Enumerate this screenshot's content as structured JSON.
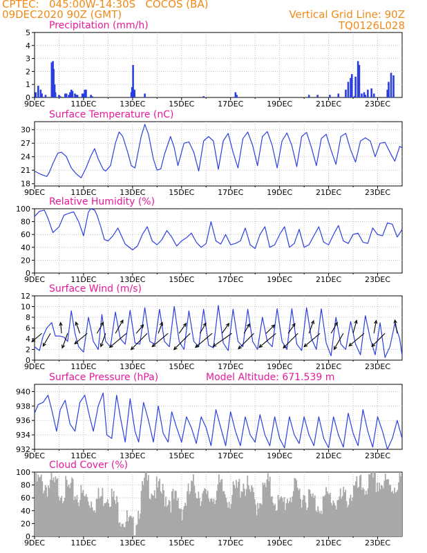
{
  "header": {
    "left_line1": "CPTEC:   045:00W-14:30S   COCOS (BA)",
    "left_line2": "09DEC2020 90Z (GMT)",
    "right_line1": "Vertical Grid Line: 90Z",
    "right_line2": "TQ0126L028"
  },
  "colors": {
    "header": "#ee8a1a",
    "title": "#e8199a",
    "series": "#2b3fe0",
    "cloud": "#a8a8a8",
    "axis": "#000000",
    "grid": "#b0b0b0"
  },
  "x_axis": {
    "labels": [
      "9DEC",
      "11DEC",
      "13DEC",
      "15DEC",
      "17DEC",
      "19DEC",
      "21DEC",
      "23DEC"
    ],
    "label_days": [
      0,
      2,
      4,
      6,
      8,
      10,
      12,
      14
    ],
    "span_days": 15
  },
  "chart_data": [
    {
      "type": "bar",
      "title": "Precipitation (mm/h)",
      "ylim": [
        0,
        5
      ],
      "yticks": [
        "0",
        "1",
        "2",
        "3",
        "4",
        "5"
      ],
      "x": [
        0.05,
        0.15,
        0.25,
        0.3,
        0.45,
        0.7,
        0.75,
        0.78,
        0.82,
        0.85,
        1.0,
        1.05,
        1.25,
        1.3,
        1.4,
        1.45,
        1.5,
        1.55,
        1.65,
        1.7,
        1.75,
        1.95,
        2.0,
        2.05,
        2.1,
        2.3,
        2.35,
        3.95,
        3.98,
        4.02,
        4.08,
        4.5,
        6.9,
        8.2,
        8.25,
        11.2,
        11.55,
        12.05,
        12.4,
        12.7,
        12.8,
        12.9,
        12.95,
        13.05,
        13.1,
        13.2,
        13.25,
        13.35,
        13.45,
        13.5,
        13.6,
        13.75,
        13.85,
        14.4,
        14.45,
        14.55,
        14.65
      ],
      "values": [
        0.4,
        0.9,
        0.6,
        0.3,
        0.2,
        2.7,
        2.8,
        2.2,
        1.0,
        0.4,
        0.2,
        0.1,
        0.3,
        0.3,
        0.2,
        0.4,
        0.6,
        0.5,
        0.3,
        0.2,
        0.2,
        0.3,
        0.3,
        0.6,
        0.6,
        0.2,
        0.1,
        0.4,
        0.8,
        2.5,
        0.6,
        0.3,
        0.1,
        0.4,
        0.2,
        0.2,
        0.2,
        0.2,
        0.3,
        0.6,
        1.2,
        1.5,
        1.8,
        0.1,
        1.6,
        2.8,
        2.5,
        0.3,
        0.4,
        0.2,
        0.6,
        0.7,
        0.3,
        0.6,
        1.2,
        1.9,
        1.7
      ]
    },
    {
      "type": "line",
      "title": "Surface Temperature (nC)",
      "ylim": [
        17.5,
        31.8
      ],
      "yticks": [
        "18",
        "21",
        "24",
        "27",
        "30"
      ],
      "x": [
        0,
        0.25,
        0.5,
        0.6,
        0.75,
        0.95,
        1.1,
        1.3,
        1.5,
        1.7,
        1.9,
        2.1,
        2.3,
        2.45,
        2.6,
        2.8,
        2.9,
        3.1,
        3.3,
        3.45,
        3.6,
        3.8,
        3.95,
        4.1,
        4.35,
        4.5,
        4.65,
        4.85,
        5.0,
        5.15,
        5.3,
        5.55,
        5.7,
        5.85,
        6.1,
        6.3,
        6.5,
        6.7,
        6.9,
        7.1,
        7.3,
        7.5,
        7.7,
        7.9,
        8.1,
        8.3,
        8.5,
        8.7,
        8.9,
        9.1,
        9.3,
        9.5,
        9.7,
        9.9,
        10.1,
        10.3,
        10.5,
        10.7,
        10.9,
        11.1,
        11.3,
        11.5,
        11.7,
        11.9,
        12.1,
        12.3,
        12.5,
        12.7,
        12.9,
        13.1,
        13.3,
        13.5,
        13.7,
        13.9,
        14.1,
        14.3,
        14.5,
        14.7,
        14.9,
        15.0
      ],
      "values": [
        20.8,
        20.1,
        19.6,
        20.5,
        22.5,
        24.8,
        25.0,
        24.0,
        21.5,
        20.2,
        19.3,
        21.5,
        24.2,
        25.8,
        23.5,
        21.2,
        20.8,
        22.0,
        27.0,
        29.5,
        28.5,
        25.0,
        22.0,
        21.5,
        28.5,
        31.2,
        29.0,
        23.5,
        21.0,
        21.3,
        24.5,
        28.5,
        26.0,
        22.0,
        27.0,
        27.3,
        25.0,
        20.8,
        27.5,
        28.5,
        27.5,
        21.2,
        27.5,
        29.2,
        25.0,
        21.5,
        28.0,
        29.5,
        26.5,
        22.0,
        28.5,
        29.6,
        26.5,
        21.5,
        27.5,
        29.3,
        26.5,
        21.8,
        28.5,
        29.4,
        26.0,
        22.0,
        28.0,
        29.0,
        25.5,
        22.3,
        28.5,
        29.2,
        25.5,
        22.8,
        27.5,
        28.2,
        27.5,
        24.0,
        27.0,
        27.2,
        25.0,
        23.0,
        26.3,
        26.0
      ]
    },
    {
      "type": "line",
      "title": "Relative Humidity (%)",
      "ylim": [
        0,
        100
      ],
      "yticks": [
        "0",
        "20",
        "40",
        "60",
        "80",
        "100"
      ],
      "x": [
        0,
        0.2,
        0.4,
        0.55,
        0.75,
        1.0,
        1.2,
        1.4,
        1.6,
        1.8,
        2.0,
        2.2,
        2.3,
        2.45,
        2.55,
        2.7,
        2.85,
        3.0,
        3.2,
        3.4,
        3.7,
        4.0,
        4.2,
        4.4,
        4.6,
        4.8,
        5.0,
        5.2,
        5.4,
        5.6,
        5.8,
        6.0,
        6.2,
        6.4,
        6.6,
        6.8,
        7.0,
        7.2,
        7.4,
        7.6,
        7.8,
        8.0,
        8.2,
        8.4,
        8.6,
        8.8,
        9.0,
        9.2,
        9.4,
        9.6,
        9.8,
        10.0,
        10.2,
        10.4,
        10.6,
        10.8,
        11.0,
        11.2,
        11.4,
        11.6,
        11.8,
        12.0,
        12.2,
        12.4,
        12.6,
        12.8,
        13.0,
        13.2,
        13.4,
        13.6,
        13.8,
        14.0,
        14.2,
        14.4,
        14.6,
        14.8,
        15.0
      ],
      "values": [
        88,
        96,
        98,
        85,
        63,
        72,
        90,
        93,
        95,
        80,
        58,
        95,
        100,
        98,
        90,
        72,
        52,
        50,
        58,
        70,
        45,
        36,
        42,
        60,
        72,
        50,
        44,
        52,
        66,
        56,
        42,
        50,
        55,
        62,
        48,
        40,
        46,
        80,
        50,
        45,
        60,
        44,
        46,
        50,
        70,
        44,
        38,
        60,
        72,
        40,
        44,
        60,
        72,
        40,
        46,
        68,
        40,
        44,
        58,
        72,
        48,
        44,
        60,
        74,
        50,
        46,
        60,
        62,
        48,
        46,
        70,
        60,
        58,
        78,
        76,
        56,
        68
      ]
    },
    {
      "type": "line",
      "title": "Surface Wind (m/s)",
      "ylim": [
        0,
        12
      ],
      "yticks": [
        "0",
        "2",
        "4",
        "6",
        "8",
        "10",
        "12"
      ],
      "x": [
        0,
        0.2,
        0.35,
        0.5,
        0.7,
        0.85,
        1.0,
        1.2,
        1.35,
        1.5,
        1.65,
        1.8,
        2.0,
        2.2,
        2.4,
        2.6,
        2.75,
        2.9,
        3.1,
        3.3,
        3.5,
        3.7,
        3.9,
        4.1,
        4.3,
        4.5,
        4.7,
        4.9,
        5.1,
        5.3,
        5.5,
        5.7,
        5.9,
        6.1,
        6.3,
        6.5,
        6.7,
        6.9,
        7.1,
        7.3,
        7.5,
        7.7,
        7.9,
        8.1,
        8.3,
        8.5,
        8.7,
        8.9,
        9.1,
        9.3,
        9.5,
        9.7,
        9.9,
        10.1,
        10.3,
        10.5,
        10.7,
        10.9,
        11.1,
        11.3,
        11.5,
        11.7,
        11.9,
        12.1,
        12.3,
        12.5,
        12.7,
        12.9,
        13.1,
        13.3,
        13.5,
        13.7,
        13.9,
        14.1,
        14.3,
        14.5,
        14.7,
        14.9,
        15.0
      ],
      "values": [
        2.5,
        1.8,
        4.5,
        6.0,
        7.0,
        4.5,
        4.5,
        4.3,
        3.5,
        9.2,
        5.0,
        2.5,
        1.5,
        8.0,
        3.5,
        2.0,
        8.5,
        3.5,
        2.5,
        9.0,
        4.0,
        3.0,
        9.3,
        3.2,
        3.0,
        9.8,
        3.5,
        3.0,
        9.5,
        3.5,
        2.5,
        10.0,
        3.5,
        2.0,
        9.2,
        3.5,
        2.5,
        9.5,
        2.8,
        2.3,
        10.2,
        3.2,
        1.8,
        9.5,
        3.5,
        2.5,
        9.5,
        3.5,
        2.0,
        8.0,
        3.5,
        2.5,
        9.6,
        3.5,
        2.0,
        9.6,
        3.0,
        1.8,
        9.8,
        4.0,
        2.0,
        9.6,
        3.2,
        0.8,
        8.0,
        3.0,
        2.0,
        7.2,
        3.0,
        1.0,
        8.3,
        4.0,
        1.0,
        7.0,
        0.5,
        2.5,
        6.8,
        4.0,
        0.8
      ]
    },
    {
      "type": "line",
      "title": "Surface Pressure (hPa)",
      "annotation": "Model Altitude: 671.539 m",
      "ylim": [
        932,
        941
      ],
      "yticks": [
        "932",
        "934",
        "936",
        "938",
        "940"
      ],
      "x": [
        0,
        0.15,
        0.35,
        0.55,
        0.7,
        0.9,
        1.05,
        1.25,
        1.45,
        1.65,
        1.85,
        2.05,
        2.25,
        2.4,
        2.6,
        2.8,
        2.95,
        3.15,
        3.35,
        3.5,
        3.7,
        3.9,
        4.1,
        4.25,
        4.45,
        4.65,
        4.85,
        5.05,
        5.25,
        5.45,
        5.6,
        5.8,
        6.0,
        6.2,
        6.4,
        6.6,
        6.8,
        7.0,
        7.2,
        7.4,
        7.6,
        7.8,
        8.0,
        8.2,
        8.4,
        8.6,
        8.8,
        9.0,
        9.2,
        9.4,
        9.6,
        9.8,
        10.0,
        10.2,
        10.4,
        10.6,
        10.8,
        11.0,
        11.2,
        11.4,
        11.6,
        11.8,
        12.0,
        12.2,
        12.4,
        12.6,
        12.8,
        13.0,
        13.2,
        13.4,
        13.6,
        13.8,
        14.0,
        14.2,
        14.4,
        14.6,
        14.8,
        15.0
      ],
      "values": [
        937,
        938.2,
        938.5,
        939.5,
        937.5,
        934.5,
        937.5,
        938.8,
        935.5,
        934.5,
        938.5,
        939.5,
        936.5,
        934.5,
        938.0,
        939.8,
        934.0,
        933.5,
        939.5,
        936.5,
        933.0,
        939.0,
        934.5,
        933.0,
        938.5,
        936.0,
        933.0,
        938.0,
        934.2,
        933.0,
        937.2,
        935.0,
        933.0,
        936.5,
        935.0,
        932.8,
        936.5,
        935.0,
        932.5,
        937.5,
        935.0,
        932.5,
        937.2,
        934.5,
        932.5,
        936.5,
        934.0,
        933.0,
        936.8,
        934.0,
        932.5,
        936.5,
        933.5,
        932.2,
        936.5,
        934.0,
        932.8,
        936.5,
        934.0,
        932.5,
        936.5,
        933.5,
        932.2,
        936.5,
        934.0,
        932.3,
        937.0,
        934.2,
        932.5,
        937.5,
        934.5,
        932.3,
        936.5,
        934.5,
        932.0,
        933.5,
        936.0,
        933.5
      ]
    },
    {
      "type": "area",
      "title": "Cloud Cover (%)",
      "ylim": [
        0,
        100
      ],
      "yticks": [
        "0",
        "20",
        "40",
        "60",
        "80",
        "100"
      ],
      "x": [
        0,
        0.5,
        1.0,
        1.5,
        2.0,
        2.5,
        3.0,
        3.5,
        4.0,
        4.5,
        5.0,
        5.5,
        6.0,
        6.5,
        7.0,
        7.5,
        8.0,
        8.5,
        9.0,
        9.5,
        10.0,
        10.5,
        11.0,
        11.5,
        12.0,
        12.5,
        13.0,
        13.5,
        14.0,
        14.5,
        15.0
      ],
      "values": [
        85,
        80,
        75,
        70,
        60,
        55,
        70,
        35,
        10,
        85,
        70,
        60,
        45,
        80,
        55,
        75,
        60,
        85,
        50,
        80,
        45,
        70,
        65,
        50,
        60,
        55,
        70,
        80,
        85,
        75,
        92
      ]
    }
  ],
  "wind_vectors": {
    "x": [
      0.3,
      0.65,
      1.1,
      1.35,
      1.85,
      2.15,
      2.55,
      2.9,
      3.3,
      3.75,
      4.15,
      4.6,
      5.05,
      5.45,
      5.9,
      6.35,
      6.75,
      7.25,
      7.65,
      8.05,
      8.55,
      8.95,
      9.45,
      9.85,
      10.35,
      10.75,
      11.2,
      11.65,
      12.1,
      12.6,
      13.0,
      13.45,
      13.85,
      14.3,
      14.8
    ],
    "speed": [
      4.0,
      4.8,
      3.0,
      5.2,
      3.5,
      5.5,
      3.8,
      4.5,
      5.0,
      8.0,
      3.2,
      8.5,
      3.4,
      7.5,
      3.6,
      8.5,
      3.5,
      8.0,
      3.6,
      8.5,
      3.0,
      8.0,
      3.5,
      8.0,
      3.5,
      7.5,
      4.2,
      7.5,
      3.8,
      6.5,
      4.2,
      7.0,
      4.0,
      6.5,
      4.2
    ],
    "direction": [
      230,
      210,
      355,
      200,
      340,
      230,
      30,
      200,
      30,
      230,
      40,
      225,
      20,
      230,
      35,
      225,
      30,
      230,
      35,
      235,
      30,
      225,
      45,
      230,
      35,
      225,
      20,
      230,
      30,
      210,
      15,
      230,
      10,
      225,
      350
    ]
  }
}
